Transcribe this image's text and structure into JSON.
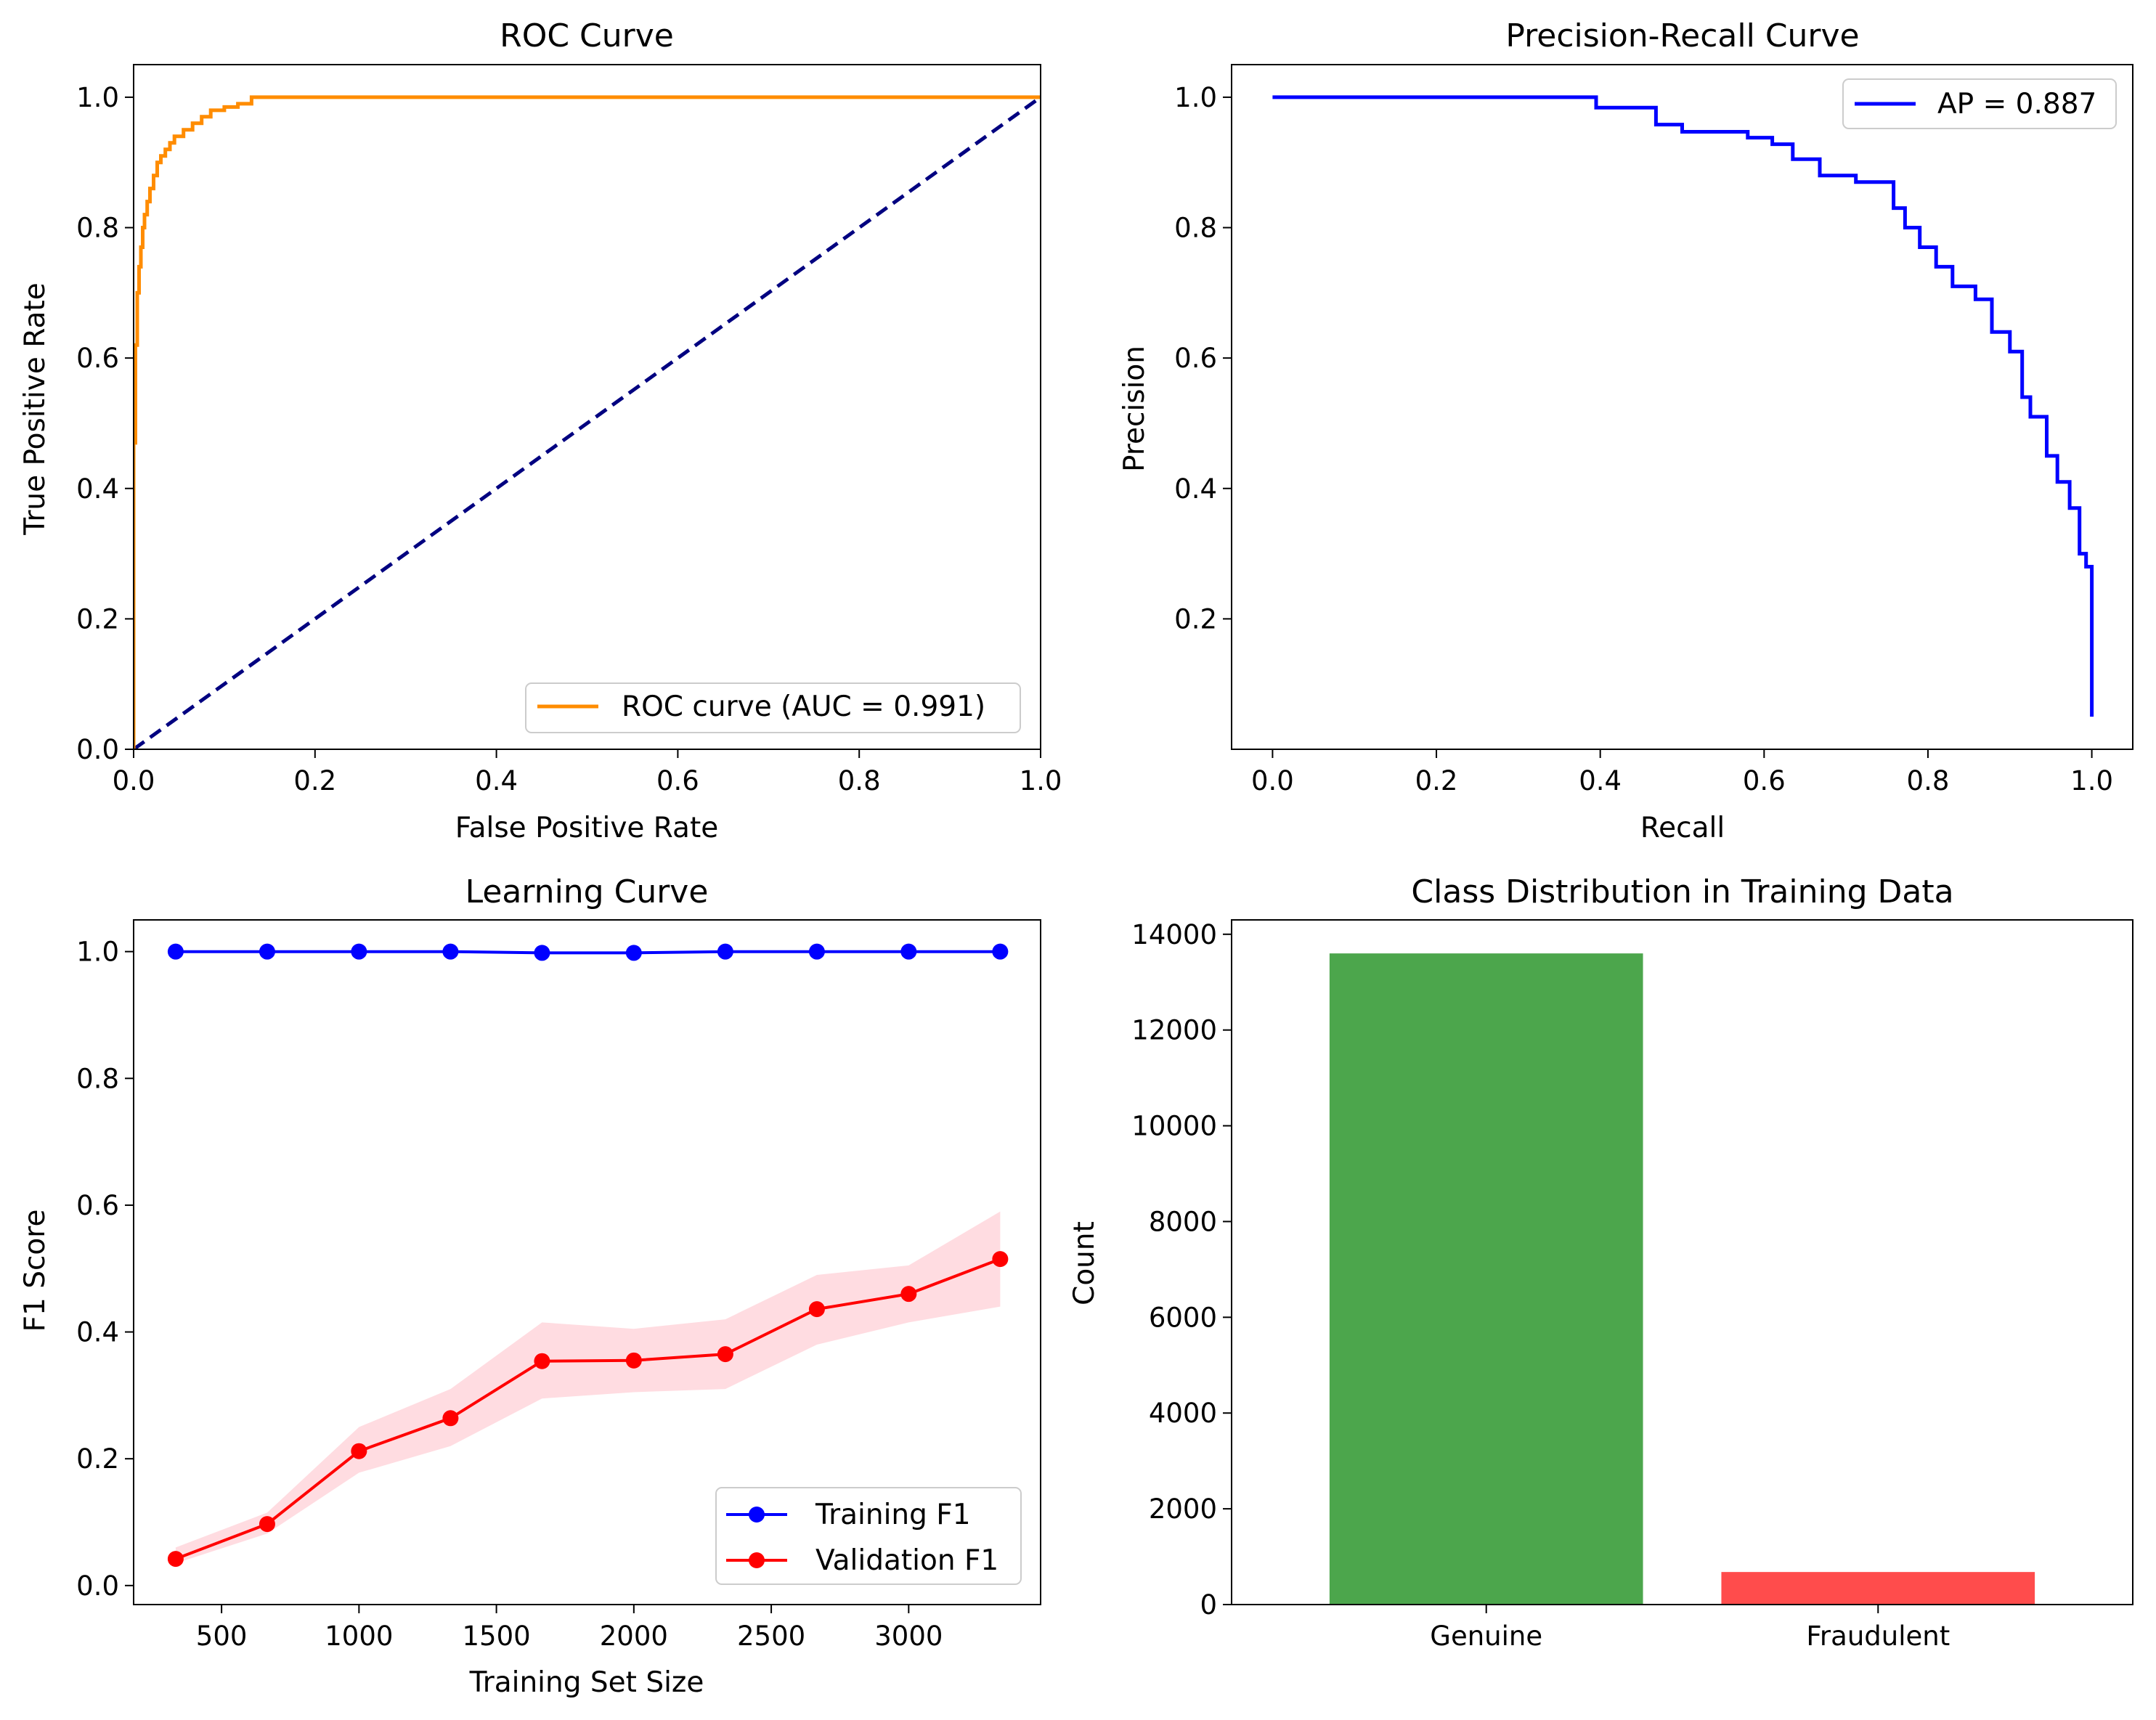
{
  "chart_data": [
    {
      "type": "line",
      "title": "ROC Curve",
      "xlabel": "False Positive Rate",
      "ylabel": "True Positive Rate",
      "xlim": [
        0.0,
        1.0
      ],
      "ylim": [
        0.0,
        1.05
      ],
      "xticks": [
        "0.0",
        "0.2",
        "0.4",
        "0.6",
        "0.8",
        "1.0"
      ],
      "yticks": [
        "0.0",
        "0.2",
        "0.4",
        "0.6",
        "0.8",
        "1.0"
      ],
      "legend_position": "lower-right",
      "series": [
        {
          "name": "ROC curve (AUC = 0.991)",
          "color": "#ff8c00",
          "style": "solid",
          "x": [
            0,
            0,
            0.002,
            0.002,
            0.004,
            0.004,
            0.006,
            0.006,
            0.008,
            0.008,
            0.01,
            0.01,
            0.012,
            0.012,
            0.015,
            0.015,
            0.018,
            0.018,
            0.022,
            0.022,
            0.026,
            0.026,
            0.03,
            0.03,
            0.035,
            0.035,
            0.04,
            0.04,
            0.045,
            0.045,
            0.055,
            0.055,
            0.065,
            0.065,
            0.075,
            0.075,
            0.085,
            0.085,
            0.1,
            0.1,
            0.115,
            0.115,
            0.13,
            0.13,
            0.6,
            1.0
          ],
          "y": [
            0,
            0.47,
            0.47,
            0.62,
            0.62,
            0.7,
            0.7,
            0.74,
            0.74,
            0.77,
            0.77,
            0.8,
            0.8,
            0.82,
            0.82,
            0.84,
            0.84,
            0.86,
            0.86,
            0.88,
            0.88,
            0.9,
            0.9,
            0.91,
            0.91,
            0.92,
            0.92,
            0.93,
            0.93,
            0.94,
            0.94,
            0.95,
            0.95,
            0.96,
            0.96,
            0.97,
            0.97,
            0.98,
            0.98,
            0.985,
            0.985,
            0.99,
            0.99,
            1.0,
            1.0,
            1.0
          ]
        },
        {
          "name": "",
          "color": "#000080",
          "style": "dashed",
          "x": [
            0,
            1
          ],
          "y": [
            0,
            1
          ]
        }
      ],
      "grid": false
    },
    {
      "type": "line",
      "title": "Precision-Recall Curve",
      "xlabel": "Recall",
      "ylabel": "Precision",
      "xlim": [
        -0.05,
        1.05
      ],
      "ylim": [
        0.0,
        1.05
      ],
      "xticks": [
        "0.0",
        "0.2",
        "0.4",
        "0.6",
        "0.8",
        "1.0"
      ],
      "yticks": [
        "0.2",
        "0.4",
        "0.6",
        "0.8",
        "1.0"
      ],
      "legend_position": "upper-right",
      "series": [
        {
          "name": "AP = 0.887",
          "color": "#0000ff",
          "style": "solid",
          "x": [
            0.0,
            0.395,
            0.395,
            0.468,
            0.468,
            0.5,
            0.5,
            0.58,
            0.58,
            0.61,
            0.61,
            0.635,
            0.635,
            0.668,
            0.668,
            0.712,
            0.712,
            0.758,
            0.758,
            0.772,
            0.772,
            0.79,
            0.79,
            0.81,
            0.81,
            0.83,
            0.83,
            0.858,
            0.858,
            0.878,
            0.878,
            0.9,
            0.9,
            0.915,
            0.915,
            0.925,
            0.925,
            0.945,
            0.945,
            0.958,
            0.958,
            0.973,
            0.973,
            0.985,
            0.985,
            0.993,
            0.993,
            1.0,
            1.0
          ],
          "y": [
            1.0,
            1.0,
            0.984,
            0.984,
            0.958,
            0.958,
            0.947,
            0.947,
            0.938,
            0.938,
            0.928,
            0.928,
            0.905,
            0.905,
            0.88,
            0.88,
            0.87,
            0.87,
            0.83,
            0.83,
            0.8,
            0.8,
            0.77,
            0.77,
            0.74,
            0.74,
            0.71,
            0.71,
            0.69,
            0.69,
            0.64,
            0.64,
            0.61,
            0.61,
            0.54,
            0.54,
            0.51,
            0.51,
            0.45,
            0.45,
            0.41,
            0.41,
            0.37,
            0.37,
            0.3,
            0.3,
            0.28,
            0.28,
            0.05
          ]
        }
      ],
      "grid": false
    },
    {
      "type": "line",
      "title": "Learning Curve",
      "xlabel": "Training Set Size",
      "ylabel": "F1 Score",
      "xlim": [
        180,
        3480
      ],
      "ylim": [
        -0.03,
        1.05
      ],
      "xticks": [
        "500",
        "1000",
        "1500",
        "2000",
        "2500",
        "3000"
      ],
      "yticks": [
        "0.0",
        "0.2",
        "0.4",
        "0.6",
        "0.8",
        "1.0"
      ],
      "legend_position": "lower-right",
      "x": [
        333,
        666,
        1000,
        1333,
        1666,
        2000,
        2333,
        2666,
        3000,
        3333
      ],
      "series": [
        {
          "name": "Training F1",
          "color": "#0000ff",
          "marker": "circle",
          "values": [
            1.0,
            1.0,
            1.0,
            1.0,
            0.998,
            0.998,
            1.0,
            1.0,
            1.0,
            1.0
          ],
          "band_lower": [
            1.0,
            1.0,
            1.0,
            1.0,
            0.996,
            0.996,
            1.0,
            1.0,
            1.0,
            1.0
          ],
          "band_upper": [
            1.0,
            1.0,
            1.0,
            1.0,
            1.0,
            1.0,
            1.0,
            1.0,
            1.0,
            1.0
          ]
        },
        {
          "name": "Validation F1",
          "color": "#ff0000",
          "marker": "circle",
          "band_color": "#ffc0c8",
          "values": [
            0.042,
            0.097,
            0.212,
            0.264,
            0.354,
            0.355,
            0.365,
            0.436,
            0.46,
            0.515
          ],
          "band_lower": [
            0.035,
            0.082,
            0.178,
            0.22,
            0.295,
            0.305,
            0.31,
            0.38,
            0.415,
            0.44
          ],
          "band_upper": [
            0.06,
            0.115,
            0.25,
            0.31,
            0.415,
            0.405,
            0.42,
            0.49,
            0.505,
            0.59
          ]
        }
      ],
      "grid": false
    },
    {
      "type": "bar",
      "title": "Class Distribution in Training Data",
      "xlabel": "",
      "ylabel": "Count",
      "categories": [
        "Genuine",
        "Fraudulent"
      ],
      "values": [
        13600,
        680
      ],
      "colors": [
        "#4ca64c",
        "#ff4c4c"
      ],
      "ylim": [
        0,
        14300
      ],
      "yticks": [
        "0",
        "2000",
        "4000",
        "6000",
        "8000",
        "10000",
        "12000",
        "14000"
      ],
      "grid": false
    }
  ]
}
